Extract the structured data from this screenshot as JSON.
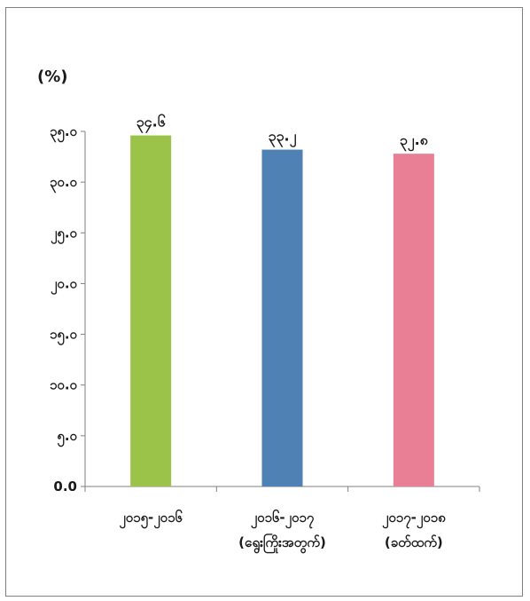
{
  "chart_data": {
    "type": "bar",
    "unit_label": "(%)",
    "ylim": [
      0,
      35
    ],
    "y_ticks": [
      0,
      5,
      10,
      15,
      20,
      25,
      30,
      35
    ],
    "y_tick_labels": [
      "0.0",
      "၅.၀",
      "၁၀.၀",
      "၁၅.၀",
      "၂၀.၀",
      "၂၅.၀",
      "၃၀.၀",
      "၃၅.၀"
    ],
    "categories": [
      {
        "line1": "၂၀၁၅-၂၀၁၆",
        "line2": ""
      },
      {
        "line1": "၂၀၁၆-၂၀၁၇",
        "line2": "(ရွေးကြိုးအတွက်)"
      },
      {
        "line1": "၂၀၁၇-၂၀၁၈",
        "line2": "(ခတ်ထက်)"
      }
    ],
    "values": [
      34.6,
      33.2,
      32.8
    ],
    "data_labels": [
      "၃၄.၆",
      "၃၃.၂",
      "၃၂.၈"
    ],
    "colors": [
      "#9bc34a",
      "#4f81b5",
      "#e87f95"
    ],
    "grid": false,
    "legend": "none"
  }
}
